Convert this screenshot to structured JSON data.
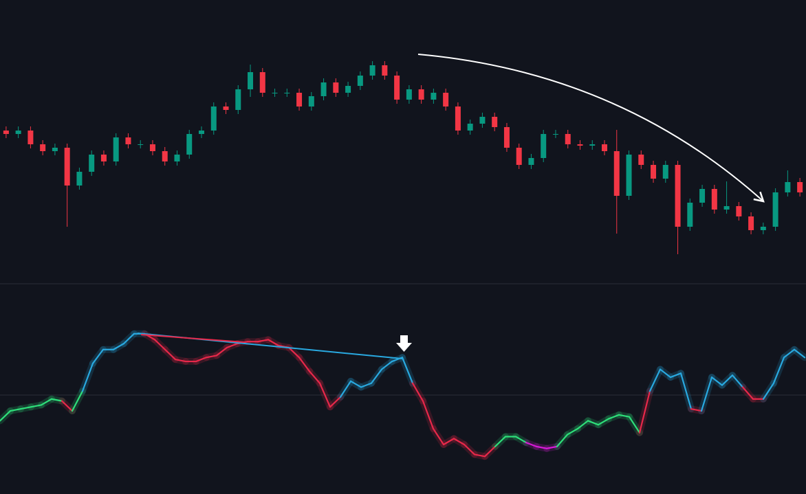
{
  "chart_data": [
    {
      "type": "candlestick",
      "ylim": [
        0,
        400
      ],
      "up_color": "#089981",
      "down_color": "#f23645",
      "open": [
        210,
        205,
        210,
        190,
        180,
        185,
        130,
        150,
        175,
        165,
        200,
        190,
        190,
        180,
        165,
        175,
        205,
        210,
        245,
        240,
        270,
        295,
        265,
        265,
        265,
        245,
        260,
        280,
        265,
        275,
        290,
        305,
        290,
        255,
        270,
        255,
        265,
        245,
        210,
        220,
        230,
        215,
        185,
        160,
        170,
        205,
        205,
        190,
        188,
        190,
        180,
        115,
        175,
        160,
        140,
        160,
        70,
        105,
        125,
        95,
        100,
        85,
        65,
        70,
        120,
        135
      ],
      "high": [
        216,
        216,
        216,
        196,
        191,
        191,
        156,
        181,
        181,
        206,
        206,
        196,
        196,
        186,
        181,
        211,
        216,
        251,
        251,
        276,
        306,
        301,
        271,
        271,
        271,
        266,
        286,
        286,
        281,
        296,
        311,
        311,
        296,
        276,
        276,
        271,
        271,
        251,
        226,
        236,
        236,
        221,
        191,
        176,
        211,
        211,
        211,
        196,
        196,
        196,
        211,
        181,
        181,
        166,
        166,
        166,
        111,
        131,
        131,
        136,
        106,
        91,
        76,
        126,
        152,
        141
      ],
      "low": [
        199,
        199,
        184,
        174,
        174,
        70,
        124,
        144,
        159,
        159,
        184,
        184,
        174,
        159,
        159,
        169,
        199,
        204,
        234,
        234,
        259,
        259,
        259,
        259,
        239,
        239,
        254,
        259,
        259,
        269,
        284,
        284,
        249,
        249,
        249,
        249,
        239,
        204,
        204,
        214,
        209,
        179,
        154,
        154,
        164,
        199,
        184,
        182,
        182,
        174,
        60,
        109,
        154,
        134,
        134,
        30,
        64,
        99,
        89,
        89,
        79,
        59,
        59,
        64,
        114,
        114
      ],
      "close": [
        205,
        210,
        190,
        180,
        185,
        130,
        150,
        175,
        165,
        200,
        190,
        190,
        180,
        165,
        175,
        205,
        210,
        245,
        240,
        270,
        295,
        265,
        265,
        265,
        245,
        260,
        280,
        265,
        275,
        290,
        305,
        290,
        255,
        270,
        255,
        265,
        245,
        210,
        220,
        230,
        215,
        185,
        160,
        170,
        205,
        205,
        190,
        188,
        190,
        180,
        115,
        175,
        160,
        140,
        160,
        70,
        105,
        125,
        95,
        100,
        85,
        65,
        70,
        120,
        135,
        120
      ]
    },
    {
      "type": "line",
      "ylim": [
        0,
        100
      ],
      "midline": 50,
      "values": [
        37,
        42,
        43,
        44,
        45,
        48,
        47,
        42,
        52,
        66,
        73,
        73,
        76,
        81,
        81,
        78,
        73,
        68,
        67,
        67,
        69,
        70,
        74,
        76,
        77,
        77,
        78,
        75,
        74,
        69,
        62,
        56,
        44,
        49,
        57,
        54,
        56,
        63,
        67,
        69,
        56,
        47,
        33,
        25,
        28,
        25,
        20,
        19,
        24,
        29,
        29,
        26,
        24,
        23,
        24,
        30,
        33,
        37,
        35,
        38,
        40,
        39,
        31,
        52,
        63,
        59,
        61,
        43,
        42,
        59,
        55,
        60,
        54,
        48,
        48,
        56,
        69,
        73,
        69
      ],
      "colors": [
        "#2edf7a",
        "#2edf7a",
        "#2edf7a",
        "#2edf7a",
        "#2edf7a",
        "#2edf7a",
        "#e8284a",
        "#2edf7a",
        "#29a9e0",
        "#29a9e0",
        "#29a9e0",
        "#29a9e0",
        "#29a9e0",
        "#29a9e0",
        "#e8284a",
        "#e8284a",
        "#e8284a",
        "#e8284a",
        "#e8284a",
        "#e8284a",
        "#e8284a",
        "#e8284a",
        "#e8284a",
        "#e8284a",
        "#e8284a",
        "#e8284a",
        "#e8284a",
        "#e8284a",
        "#e8284a",
        "#e8284a",
        "#e8284a",
        "#e8284a",
        "#e8284a",
        "#29a9e0",
        "#29a9e0",
        "#29a9e0",
        "#29a9e0",
        "#29a9e0",
        "#29a9e0",
        "#29a9e0",
        "#e8284a",
        "#e8284a",
        "#e8284a",
        "#e8284a",
        "#e8284a",
        "#e8284a",
        "#e8284a",
        "#e8284a",
        "#2edf7a",
        "#2edf7a",
        "#2edf7a",
        "#d61ad6",
        "#d61ad6",
        "#d61ad6",
        "#2edf7a",
        "#2edf7a",
        "#2edf7a",
        "#2edf7a",
        "#2edf7a",
        "#2edf7a",
        "#2edf7a",
        "#2edf7a",
        "#e8284a",
        "#29a9e0",
        "#29a9e0",
        "#29a9e0",
        "#29a9e0",
        "#e8284a",
        "#29a9e0",
        "#29a9e0",
        "#29a9e0",
        "#29a9e0",
        "#e8284a",
        "#e8284a",
        "#29a9e0",
        "#29a9e0",
        "#29a9e0",
        "#29a9e0",
        "#29a9e0"
      ]
    }
  ]
}
